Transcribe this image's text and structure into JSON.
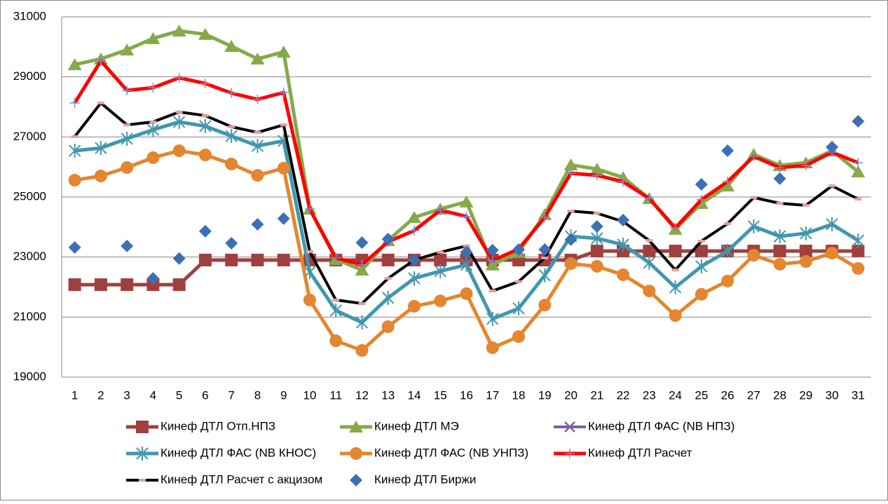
{
  "chart_data": {
    "type": "line",
    "categories": [
      "1",
      "2",
      "3",
      "4",
      "5",
      "6",
      "7",
      "8",
      "9",
      "10",
      "11",
      "12",
      "13",
      "14",
      "15",
      "16",
      "17",
      "18",
      "19",
      "20",
      "21",
      "22",
      "23",
      "24",
      "25",
      "26",
      "27",
      "28",
      "29",
      "30",
      "31"
    ],
    "ylim": [
      19000,
      31000
    ],
    "yticks": [
      19000,
      21000,
      23000,
      25000,
      27000,
      29000,
      31000
    ],
    "grid": true,
    "series": [
      {
        "name": "Кинеф ДТЛ ФАС (NB НПЗ)",
        "color": "#7f5f9f",
        "marker": "x",
        "values": [
          22080,
          22080,
          22080,
          22080,
          22080,
          22900,
          22900,
          22900,
          22900,
          22900,
          22900,
          22900,
          22900,
          22900,
          22900,
          22900,
          22900,
          22900,
          22900,
          22900,
          23200,
          23200,
          23200,
          23200,
          23200,
          23200,
          23200,
          23200,
          23200,
          23200,
          23200
        ]
      },
      {
        "name": "Кинеф ДТЛ Отп.НПЗ",
        "color": "#a0403e",
        "marker": "square",
        "values": [
          22080,
          22080,
          22080,
          22080,
          22080,
          22900,
          22900,
          22900,
          22900,
          22900,
          22900,
          22900,
          22900,
          22900,
          22900,
          22900,
          22900,
          22900,
          22900,
          22900,
          23200,
          23200,
          23200,
          23200,
          23200,
          23200,
          23200,
          23200,
          23200,
          23200,
          23200
        ]
      },
      {
        "name": "Кинеф ДТЛ МЭ",
        "color": "#86a94a",
        "marker": "triangle",
        "values": [
          29410,
          29600,
          29900,
          30280,
          30530,
          30420,
          30020,
          29600,
          29830,
          24600,
          22920,
          22570,
          23550,
          24320,
          24600,
          24840,
          22740,
          23160,
          24420,
          26070,
          25930,
          25650,
          24950,
          23930,
          24790,
          25370,
          26420,
          26050,
          26140,
          26540,
          25840
        ]
      },
      {
        "name": "Кинеф ДТЛ ФАС (NB КНОС)",
        "color": "#4197ad",
        "marker": "asterisk",
        "values": [
          26540,
          26630,
          26940,
          27240,
          27500,
          27360,
          27030,
          26700,
          26870,
          22500,
          21220,
          20820,
          21640,
          22290,
          22530,
          22740,
          20940,
          21290,
          22390,
          23690,
          23620,
          23410,
          22810,
          21990,
          22690,
          23200,
          24020,
          23690,
          23790,
          24090,
          23550
        ]
      },
      {
        "name": "Кинеф ДТЛ ФАС (NB УНПЗ)",
        "color": "#e4862f",
        "marker": "circle",
        "values": [
          25560,
          25700,
          25980,
          26310,
          26540,
          26400,
          26100,
          25720,
          25960,
          21570,
          20210,
          19890,
          20680,
          21360,
          21540,
          21780,
          19980,
          20350,
          21400,
          22780,
          22690,
          22410,
          21870,
          21050,
          21760,
          22200,
          23060,
          22760,
          22850,
          23130,
          22620
        ]
      },
      {
        "name": "Кинеф ДТЛ Расчет",
        "color": "#ff0000",
        "marker": "plus",
        "values": [
          28130,
          29530,
          28550,
          28640,
          28970,
          28780,
          28460,
          28250,
          28480,
          24600,
          22970,
          22740,
          23510,
          23880,
          24560,
          24350,
          22880,
          23270,
          24320,
          25790,
          25720,
          25510,
          24950,
          23970,
          24910,
          25510,
          26350,
          25980,
          26050,
          26490,
          26140
        ]
      },
      {
        "name": "Кинеф ДТЛ Расчет с акцизом",
        "color": "#000000",
        "marker": "dash",
        "values": [
          27010,
          28130,
          27400,
          27500,
          27830,
          27710,
          27340,
          27150,
          27400,
          23180,
          21570,
          21450,
          22290,
          22900,
          23160,
          23370,
          21870,
          22180,
          22970,
          24530,
          24460,
          24180,
          23550,
          22570,
          23530,
          24110,
          24980,
          24790,
          24720,
          25370,
          24930
        ]
      },
      {
        "name": "Кинеф ДТЛ Биржи",
        "color": "#3d6fb5",
        "marker": "diamond",
        "line": false,
        "values": [
          23320,
          null,
          23370,
          22290,
          22950,
          23860,
          23460,
          24090,
          24280,
          null,
          null,
          23480,
          23600,
          22900,
          null,
          23160,
          23230,
          23250,
          23250,
          23580,
          24020,
          24230,
          null,
          null,
          25420,
          26540,
          null,
          25610,
          null,
          26660,
          27520
        ]
      }
    ]
  }
}
